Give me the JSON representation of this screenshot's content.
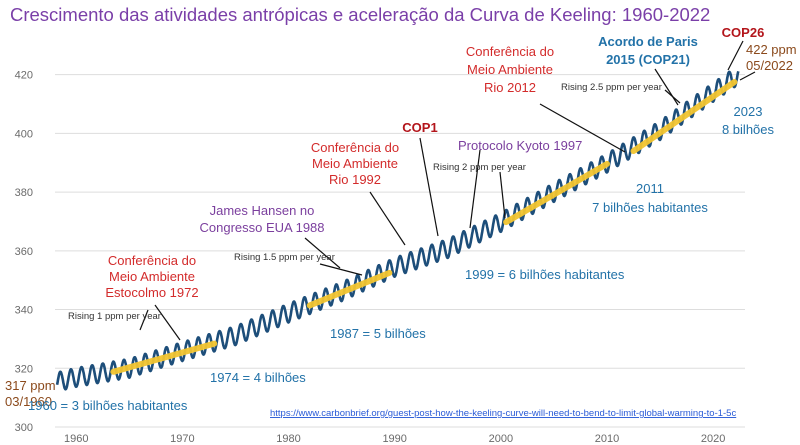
{
  "colors": {
    "title": "#7a3fa8",
    "curve": "#1d4e7a",
    "trend": "#f2c530",
    "red": "#d32b2b",
    "purple": "#7b3f9e",
    "blue": "#2272a8",
    "brown": "#8b4a1c",
    "darkred": "#b3151b",
    "grid": "#dddddd",
    "source": "#2a5bd7"
  },
  "chart_data": {
    "type": "line",
    "title": "Crescimento das atividades antrópicas e aceleração da Curva de Keeling: 1960-2022",
    "xlabel": "",
    "ylabel": "",
    "xlim": [
      1958,
      2023
    ],
    "ylim": [
      300,
      425
    ],
    "x_ticks": [
      "1960",
      "1970",
      "1980",
      "1990",
      "2000",
      "2010",
      "2020"
    ],
    "y_ticks": [
      "300",
      "320",
      "340",
      "360",
      "380",
      "400",
      "420"
    ],
    "grid": true,
    "series": [
      {
        "kind": "monthly_co2",
        "x": [
          1958,
          1960,
          1965,
          1970,
          1975,
          1980,
          1985,
          1990,
          1995,
          2000,
          2005,
          2010,
          2015,
          2020,
          2022
        ],
        "y": [
          315.2,
          316.9,
          320.0,
          325.7,
          331.1,
          338.8,
          346.1,
          354.4,
          360.8,
          369.7,
          379.9,
          389.9,
          401.0,
          414.0,
          419.0
        ],
        "seasonal_amplitude_ppm": 3.2
      }
    ],
    "trend_segments": [
      {
        "x": [
          1963.5,
          1973
        ],
        "y": [
          318.8,
          328.4
        ]
      },
      {
        "x": [
          1982,
          1989.5
        ],
        "y": [
          341.4,
          352.5
        ]
      },
      {
        "x": [
          2000.5,
          2010
        ],
        "y": [
          369.8,
          389.6
        ]
      },
      {
        "x": [
          2012.5,
          2022
        ],
        "y": [
          394.0,
          417.5
        ]
      }
    ],
    "annotations": {
      "start_value": "317 ppm",
      "start_date": "03/1960",
      "end_value": "422 ppm",
      "end_date": "05/2022",
      "rising_1": "Rising 1 ppm per year",
      "rising_15": "Rising 1.5 ppm per year",
      "rising_2": "Rising 2 ppm per year",
      "rising_25": "Rising 2.5 ppm per year",
      "estocolmo": [
        "Conferência do",
        "Meio Ambiente",
        "Estocolmo 1972"
      ],
      "rio1992": [
        "Conferência do",
        "Meio Ambiente",
        "Rio 1992"
      ],
      "rio2012": [
        "Conferência do",
        "Meio Ambiente",
        "Rio 2012"
      ],
      "hansen": [
        "James Hansen no",
        "Congresso EUA 1988"
      ],
      "cop1": "COP1",
      "kyoto": "Protocolo Kyoto 1997",
      "paris": [
        "Acordo de Paris",
        "2015 (COP21)"
      ],
      "cop26": "COP26",
      "pop1960": "1960 = 3 bilhões habitantes",
      "pop1974": "1974 = 4 bilhões",
      "pop1987": "1987 = 5 bilhões",
      "pop1999": "1999 = 6 bilhões habitantes",
      "pop2011": [
        "2011",
        "7 bilhões habitantes"
      ],
      "pop2023": [
        "2023",
        "8 bilhões"
      ],
      "source": "https://www.carbonbrief.org/guest-post-how-the-keeling-curve-will-need-to-bend-to-limit-global-warming-to-1-5c"
    }
  }
}
